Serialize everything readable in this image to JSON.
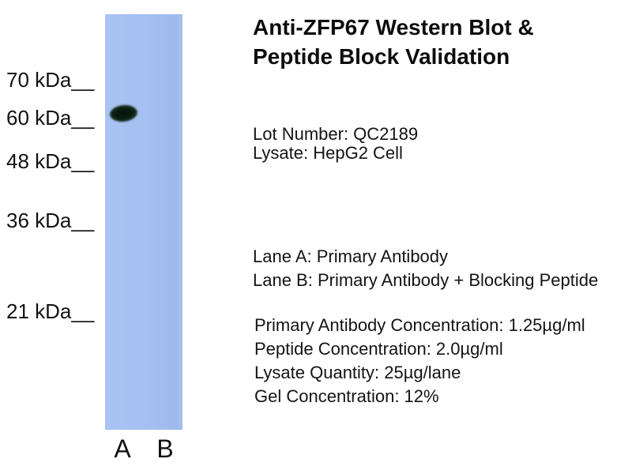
{
  "figure": {
    "title_line1": "Anti-ZFP67 Western Blot &",
    "title_line2": "Peptide Block Validation",
    "lot_number": "Lot Number: QC2189",
    "lysate": "Lysate: HepG2 Cell",
    "lane_a_desc": "Lane A: Primary Antibody",
    "lane_b_desc": "Lane B: Primary Antibody + Blocking Peptide",
    "details": [
      "Primary Antibody Concentration: 1.25µg/ml",
      "Peptide Concentration: 2.0µg/ml",
      "Lysate Quantity: 25µg/lane",
      "Gel Concentration: 12%"
    ],
    "markers": [
      "70 kDa__",
      "60 kDa__",
      "48 kDa__",
      "36 kDa__",
      "21 kDa__"
    ],
    "lane_labels": [
      "A",
      "B"
    ],
    "colors": {
      "gel": "#a5bff1",
      "band": "#0b1d11",
      "text": "#141414",
      "background": "#ffffff"
    }
  }
}
